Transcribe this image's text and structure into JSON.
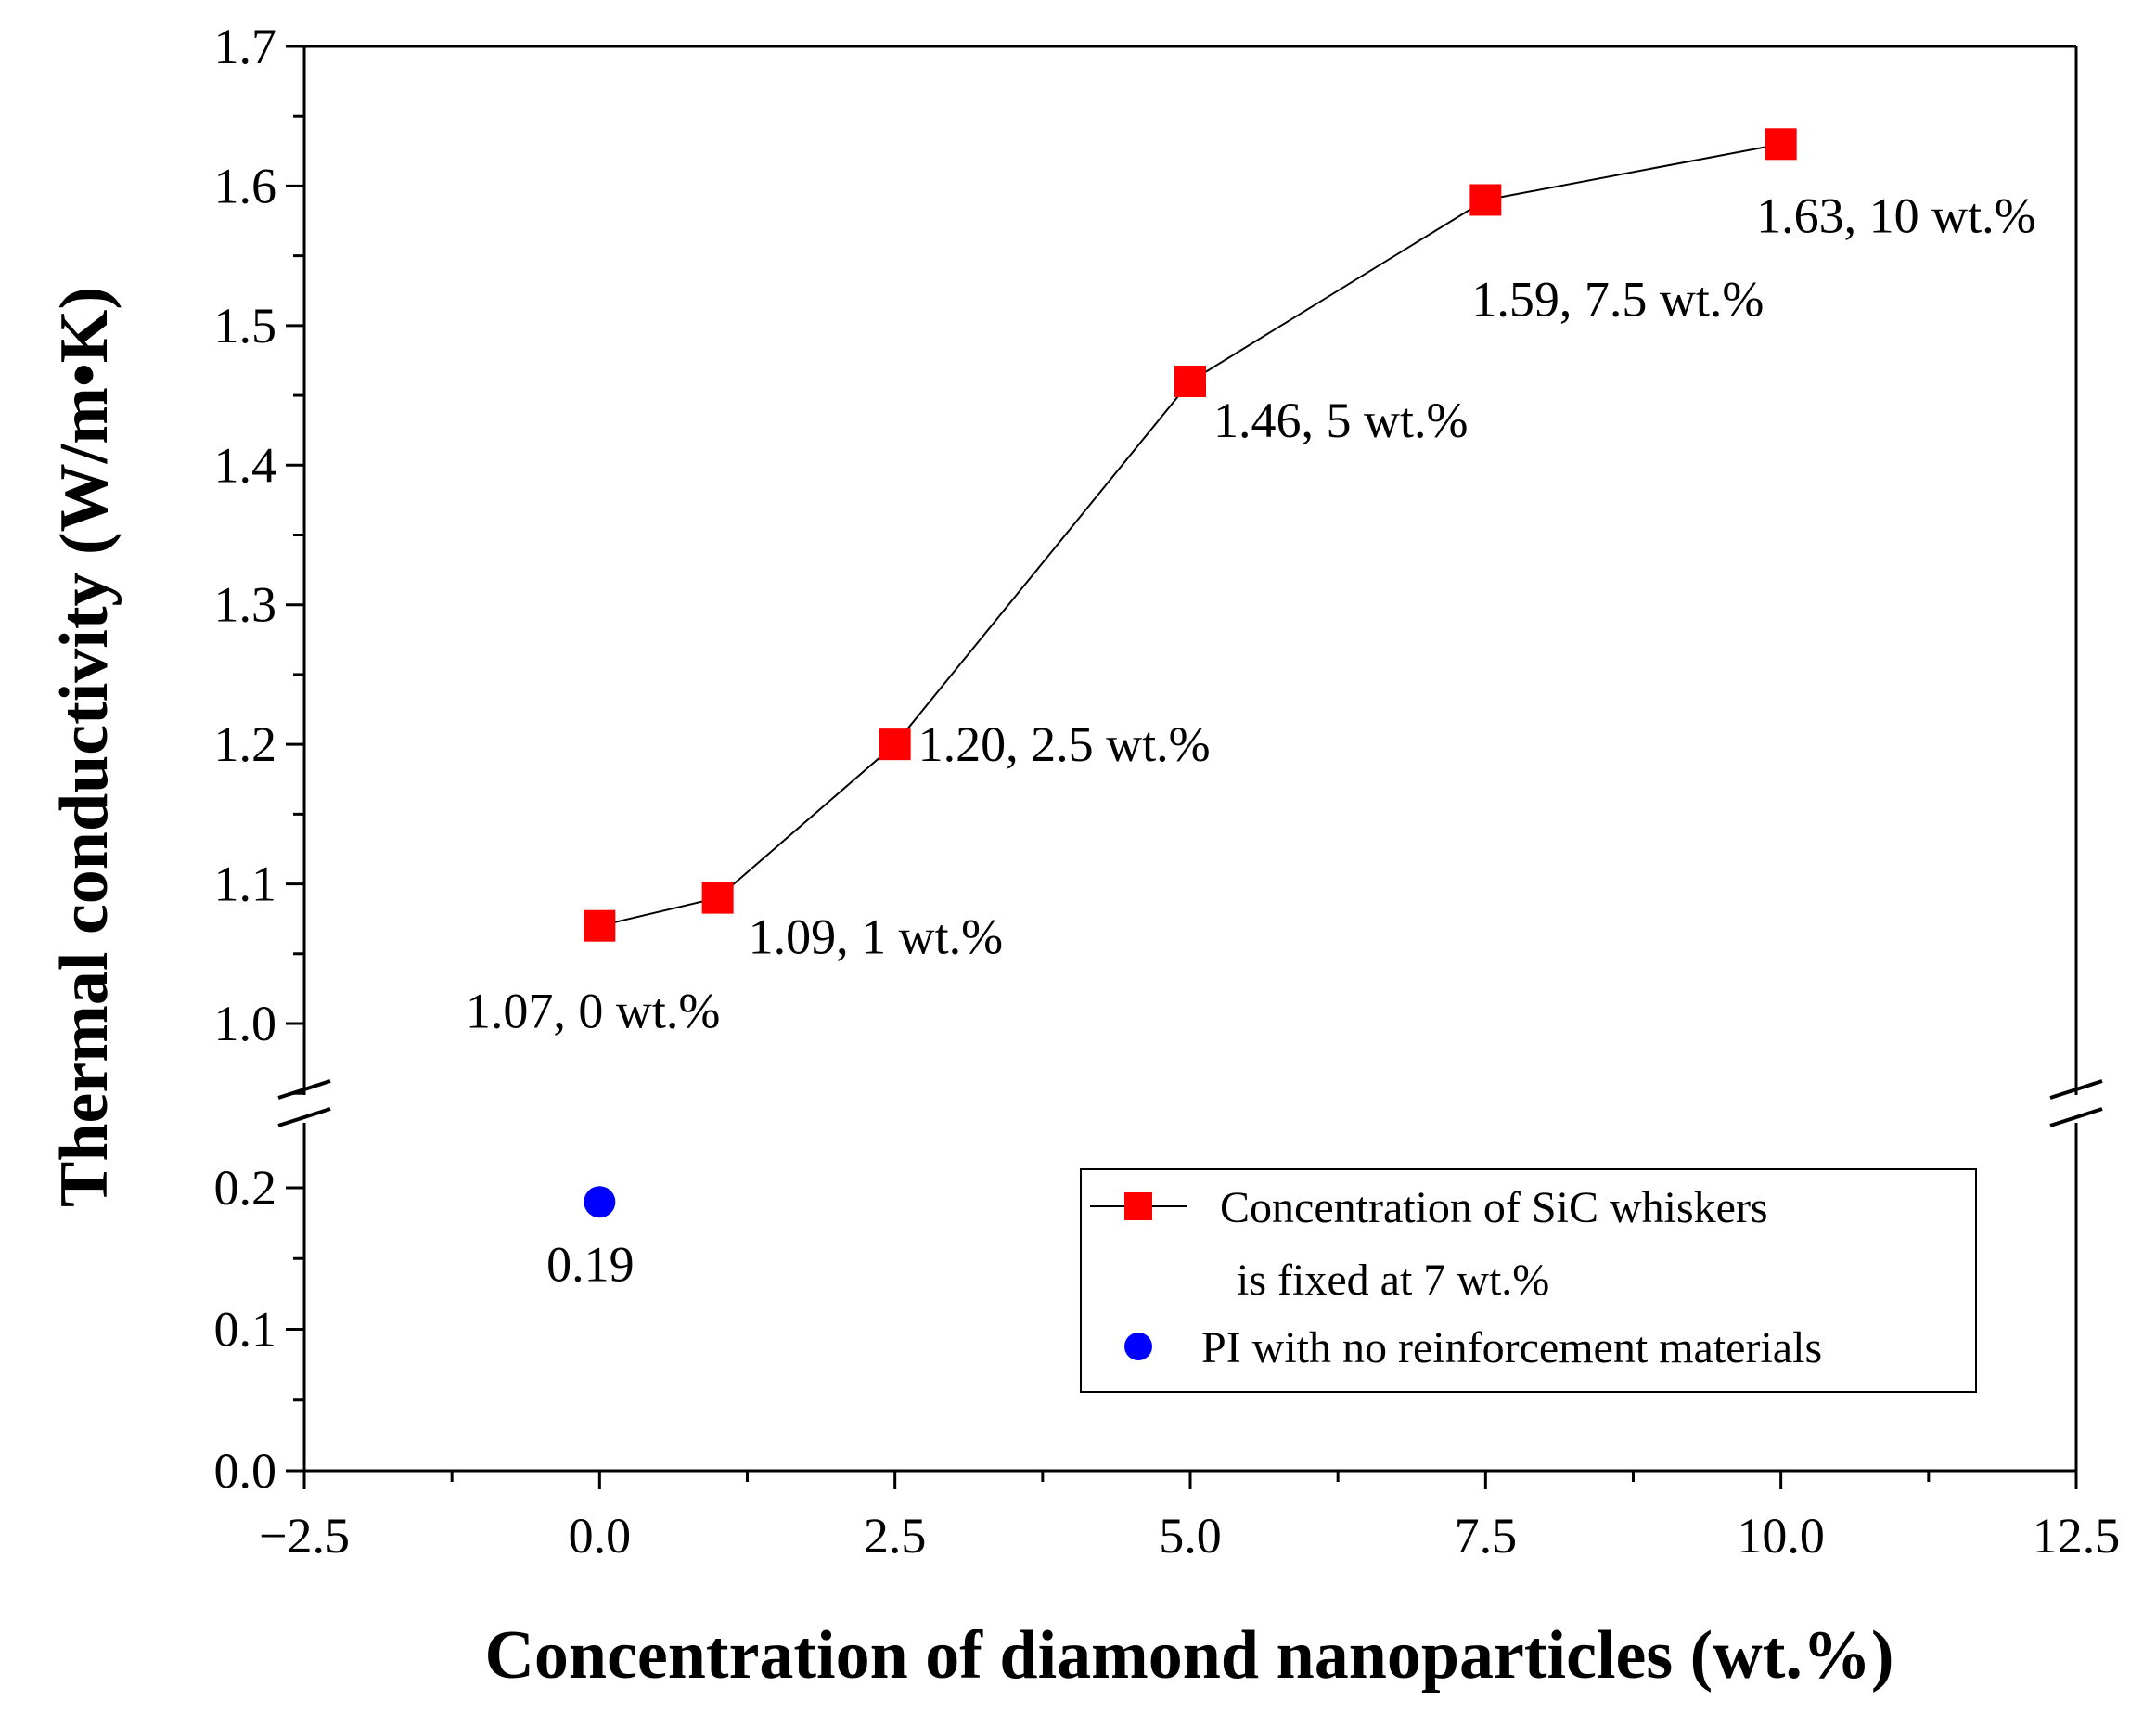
{
  "chart_data": {
    "type": "scatter",
    "title": "",
    "xlabel": "Concentration of diamond nanoparticles (wt.%)",
    "ylabel": "Thermal conductivity (W/m•K)",
    "xlim": [
      -2.5,
      12.5
    ],
    "x_ticks": [
      -2.5,
      0.0,
      2.5,
      5.0,
      7.5,
      10.0,
      12.5
    ],
    "x_tick_labels": [
      "−2.5",
      "0.0",
      "2.5",
      "5.0",
      "7.5",
      "10.0",
      "12.5"
    ],
    "y_axis_break": true,
    "ylim_lower": [
      0.0,
      0.25
    ],
    "ylim_upper": [
      0.95,
      1.7
    ],
    "y_ticks_lower": [
      0.0,
      0.1,
      0.2
    ],
    "y_tick_labels_lower": [
      "0.0",
      "0.1",
      "0.2"
    ],
    "y_ticks_upper": [
      1.0,
      1.1,
      1.2,
      1.3,
      1.4,
      1.5,
      1.6,
      1.7
    ],
    "y_tick_labels_upper": [
      "1.0",
      "1.1",
      "1.2",
      "1.3",
      "1.4",
      "1.5",
      "1.6",
      "1.7"
    ],
    "series": [
      {
        "name": "Concentration of SiC whiskers is fixed at 7 wt.%",
        "legend_lines": [
          "Concentration of SiC whiskers",
          "is fixed at 7 wt.%"
        ],
        "marker": "square",
        "color": "#ff0000",
        "line_color": "#000000",
        "x": [
          0,
          1,
          2.5,
          5,
          7.5,
          10
        ],
        "y": [
          1.07,
          1.09,
          1.2,
          1.46,
          1.59,
          1.63
        ],
        "labels": [
          "1.07,   0 wt.%",
          "1.09,   1 wt.%",
          "1.20,   2.5 wt.%",
          "1.46,   5 wt.%",
          "1.59,   7.5 wt.%",
          "1.63,   10 wt.%"
        ]
      },
      {
        "name": "PI with no reinforcement materials",
        "legend_lines": [
          "PI with no reinforcement materials"
        ],
        "marker": "circle",
        "color": "#0000ff",
        "x": [
          0
        ],
        "y": [
          0.19
        ],
        "labels": [
          "0.19"
        ]
      }
    ],
    "legend_position": "bottom-right"
  }
}
